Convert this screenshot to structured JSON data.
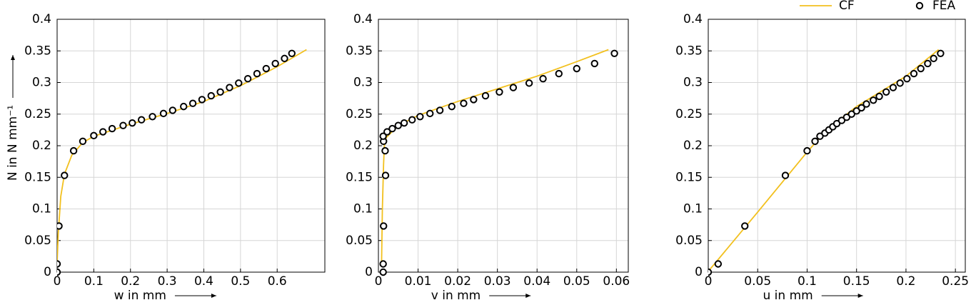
{
  "chart_data": [
    {
      "type": "line",
      "xlabel": "w in mm",
      "ylabel": "N in N mm⁻¹",
      "xlim": [
        0,
        0.73
      ],
      "ylim": [
        0,
        0.4
      ],
      "xticks": [
        0,
        0.1,
        0.2,
        0.3,
        0.4,
        0.5,
        0.6
      ],
      "yticks": [
        0,
        0.05,
        0.1,
        0.15,
        0.2,
        0.25,
        0.3,
        0.35,
        0.4
      ],
      "grid": true,
      "series": [
        {
          "color": "#f2c01e",
          "x": [
            0,
            0.003,
            0.01,
            0.02,
            0.04,
            0.07,
            0.1,
            0.2,
            0.3,
            0.4,
            0.5,
            0.6,
            0.68
          ],
          "values": [
            0.015,
            0.06,
            0.12,
            0.155,
            0.185,
            0.205,
            0.215,
            0.234,
            0.251,
            0.27,
            0.295,
            0.325,
            0.352
          ]
        },
        {
          "color": "#000000",
          "marker": "circle",
          "x": [
            0,
            0,
            0.005,
            0.02,
            0.045,
            0.07,
            0.1,
            0.125,
            0.15,
            0.18,
            0.205,
            0.23,
            0.26,
            0.29,
            0.315,
            0.345,
            0.37,
            0.395,
            0.42,
            0.445,
            0.47,
            0.495,
            0.52,
            0.545,
            0.57,
            0.595,
            0.62,
            0.64
          ],
          "values": [
            0,
            0.013,
            0.073,
            0.153,
            0.192,
            0.207,
            0.216,
            0.222,
            0.227,
            0.232,
            0.236,
            0.241,
            0.246,
            0.251,
            0.256,
            0.262,
            0.267,
            0.273,
            0.279,
            0.285,
            0.292,
            0.299,
            0.306,
            0.314,
            0.322,
            0.33,
            0.338,
            0.346
          ]
        }
      ]
    },
    {
      "type": "line",
      "xlabel": "v in mm",
      "xlim": [
        0,
        0.063
      ],
      "ylim": [
        0,
        0.4
      ],
      "xticks": [
        0,
        0.01,
        0.02,
        0.03,
        0.04,
        0.05,
        0.06
      ],
      "yticks": [
        0,
        0.05,
        0.1,
        0.15,
        0.2,
        0.25,
        0.3,
        0.35,
        0.4
      ],
      "grid": true,
      "series": [
        {
          "color": "#f2c01e",
          "x": [
            0.0008,
            0.001,
            0.0013,
            0.0015,
            0.002,
            0.005,
            0.01,
            0.02,
            0.03,
            0.04,
            0.05,
            0.058
          ],
          "values": [
            0.015,
            0.1,
            0.17,
            0.2,
            0.213,
            0.232,
            0.248,
            0.27,
            0.29,
            0.31,
            0.333,
            0.352
          ]
        },
        {
          "color": "#000000",
          "marker": "circle",
          "x": [
            0.0012,
            0.0012,
            0.0013,
            0.0018,
            0.0017,
            0.0013,
            0.0012,
            0.0022,
            0.0035,
            0.005,
            0.0065,
            0.0085,
            0.0105,
            0.013,
            0.0155,
            0.0185,
            0.0215,
            0.024,
            0.027,
            0.0305,
            0.034,
            0.038,
            0.0415,
            0.0455,
            0.05,
            0.0545,
            0.0595
          ],
          "values": [
            0,
            0.013,
            0.073,
            0.153,
            0.192,
            0.207,
            0.215,
            0.222,
            0.227,
            0.232,
            0.236,
            0.241,
            0.246,
            0.251,
            0.256,
            0.262,
            0.267,
            0.273,
            0.279,
            0.285,
            0.292,
            0.299,
            0.306,
            0.314,
            0.322,
            0.33,
            0.346
          ]
        }
      ]
    },
    {
      "type": "line",
      "xlabel": "u in mm",
      "legend": "above right",
      "xlim": [
        0,
        0.26
      ],
      "ylim": [
        0,
        0.4
      ],
      "xticks": [
        0,
        0.05,
        0.1,
        0.15,
        0.2,
        0.25
      ],
      "yticks": [
        0,
        0.05,
        0.1,
        0.15,
        0.2,
        0.25,
        0.3,
        0.35,
        0.4
      ],
      "grid": true,
      "series": [
        {
          "name": "CF",
          "color": "#f2c01e",
          "x": [
            0.002,
            0.05,
            0.1,
            0.12,
            0.15,
            0.2,
            0.233
          ],
          "values": [
            0.005,
            0.095,
            0.19,
            0.225,
            0.262,
            0.31,
            0.352
          ]
        },
        {
          "name": "FEA",
          "color": "#000000",
          "marker": "circle",
          "x": [
            0,
            0.01,
            0.037,
            0.078,
            0.1,
            0.108,
            0.113,
            0.118,
            0.122,
            0.126,
            0.13,
            0.135,
            0.14,
            0.145,
            0.15,
            0.155,
            0.16,
            0.167,
            0.173,
            0.18,
            0.187,
            0.194,
            0.201,
            0.208,
            0.215,
            0.222,
            0.228,
            0.235
          ],
          "values": [
            0,
            0.013,
            0.073,
            0.153,
            0.192,
            0.207,
            0.215,
            0.22,
            0.225,
            0.23,
            0.235,
            0.24,
            0.245,
            0.25,
            0.255,
            0.26,
            0.266,
            0.272,
            0.278,
            0.285,
            0.292,
            0.299,
            0.306,
            0.314,
            0.322,
            0.33,
            0.338,
            0.346
          ]
        }
      ]
    }
  ]
}
